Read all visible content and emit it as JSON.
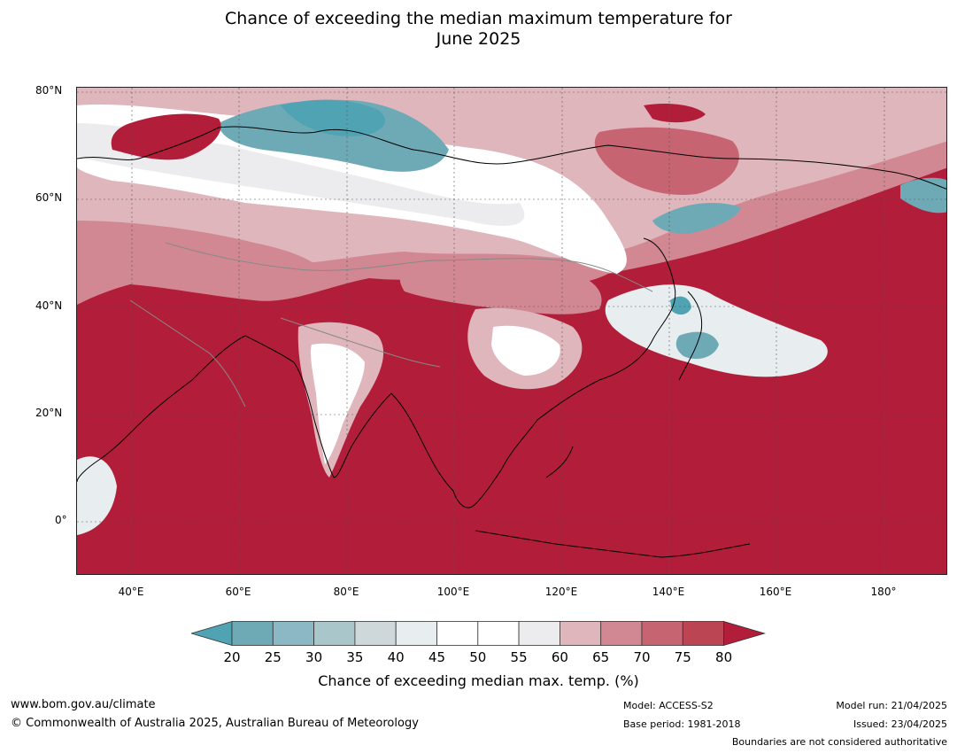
{
  "title_line1": "Chance of exceeding the median maximum temperature for",
  "title_line2": "June 2025",
  "map": {
    "lat_labels": [
      "80°N",
      "60°N",
      "40°N",
      "20°N",
      "0°"
    ],
    "lon_labels": [
      "40°E",
      "60°E",
      "80°E",
      "100°E",
      "120°E",
      "140°E",
      "160°E",
      "180°"
    ]
  },
  "colorbar": {
    "ticks": [
      "20",
      "25",
      "30",
      "35",
      "40",
      "45",
      "50",
      "55",
      "60",
      "65",
      "70",
      "75",
      "80"
    ],
    "colors": [
      "#4fa3b3",
      "#6eaab6",
      "#8bb8c4",
      "#a9c6cb",
      "#ced8da",
      "#e8eef0",
      "#ffffff",
      "#ffffff",
      "#ececee",
      "#e0b6bd",
      "#d18893",
      "#c66472",
      "#bc4553",
      "#b21d3a"
    ],
    "label": "Chance of exceeding median max. temp. (%)"
  },
  "footer": {
    "url": "www.bom.gov.au/climate",
    "copyright": "© Commonwealth of Australia 2025, Australian Bureau of Meteorology",
    "model": "Model: ACCESS-S2",
    "base_period": "Base period: 1981-2018",
    "model_run": "Model run: 21/04/2025",
    "issued": "Issued: 23/04/2025",
    "disclaimer": "Boundaries are not considered authoritative"
  }
}
